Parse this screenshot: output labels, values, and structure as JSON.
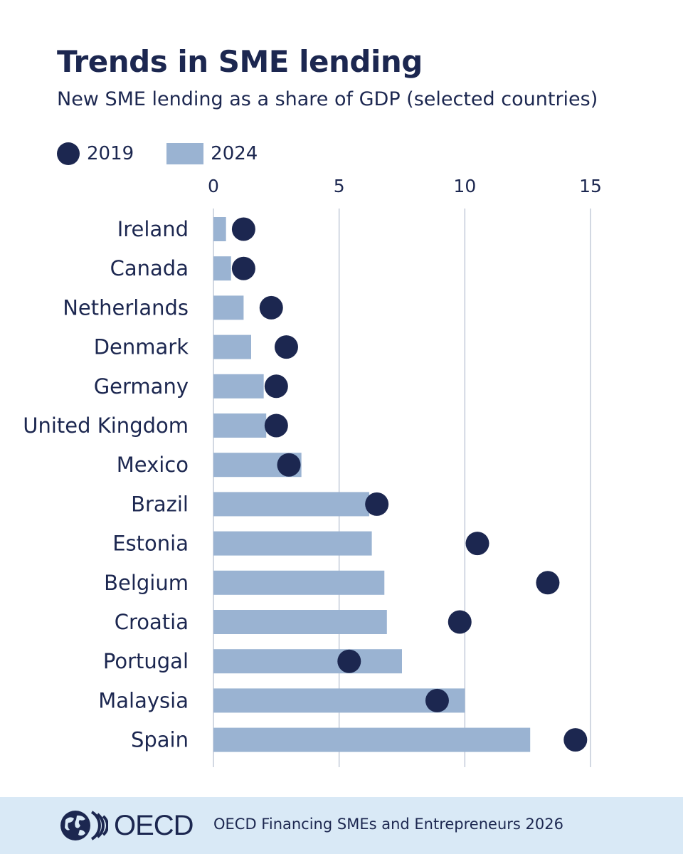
{
  "title": "Trends in SME lending",
  "subtitle": "New SME lending as a share of GDP (selected countries)",
  "legend": {
    "series_2019": "2019",
    "series_2024": "2024"
  },
  "colors": {
    "dot_2019": "#1c2750",
    "bar_2024": "#9ab3d2",
    "gridline": "#c3cbd9",
    "text": "#1c2750",
    "footer_bg": "#d9e9f6"
  },
  "chart_data": {
    "type": "bar",
    "orientation": "horizontal",
    "title": "Trends in SME lending",
    "subtitle": "New SME lending as a share of GDP (selected countries)",
    "categories": [
      "Ireland",
      "Canada",
      "Netherlands",
      "Denmark",
      "Germany",
      "United Kingdom",
      "Mexico",
      "Brazil",
      "Estonia",
      "Belgium",
      "Croatia",
      "Portugal",
      "Malaysia",
      "Spain"
    ],
    "series": [
      {
        "name": "2024",
        "mark": "bar",
        "values": [
          0.5,
          0.7,
          1.2,
          1.5,
          2.0,
          2.1,
          3.5,
          6.2,
          6.3,
          6.8,
          6.9,
          7.5,
          10.0,
          12.6
        ]
      },
      {
        "name": "2019",
        "mark": "dot",
        "values": [
          1.2,
          1.2,
          2.3,
          2.9,
          2.5,
          2.5,
          3.0,
          6.5,
          10.5,
          13.3,
          9.8,
          5.4,
          8.9,
          14.4
        ]
      }
    ],
    "xlim": [
      0,
      15
    ],
    "xticks": [
      "0",
      "5",
      "10",
      "15"
    ],
    "grid": true,
    "legend_position": "top-left"
  },
  "footer": {
    "logo_text": "OECD",
    "source": "OECD Financing SMEs and Entrepreneurs 2026"
  }
}
